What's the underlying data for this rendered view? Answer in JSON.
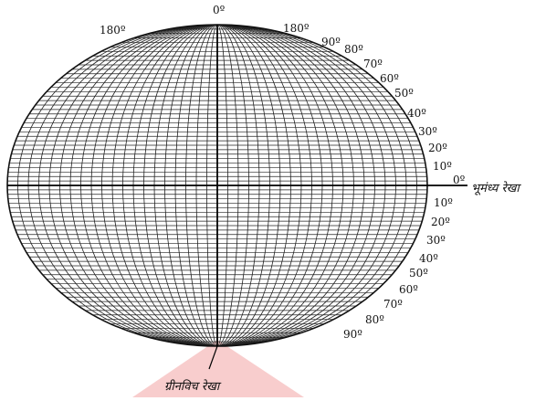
{
  "labels": {
    "top_meridian": "0º",
    "top_left_meridian": "180º",
    "top_right_meridian": "180º",
    "equator_degree": "0º",
    "equator_name": "भूमंध्य रेखा",
    "prime_meridian_name": "ग्रीनविच रेखा"
  },
  "latitudes_north": [
    "90º",
    "80º",
    "70º",
    "60º",
    "50º",
    "40º",
    "30º",
    "20º",
    "10º"
  ],
  "latitudes_south": [
    "10º",
    "20º",
    "30º",
    "40º",
    "50º",
    "60º",
    "70º",
    "80º",
    "90º"
  ],
  "colors": {
    "line": "#222222",
    "bold_line": "#000000",
    "accent_triangle": "#f7c4c4"
  }
}
